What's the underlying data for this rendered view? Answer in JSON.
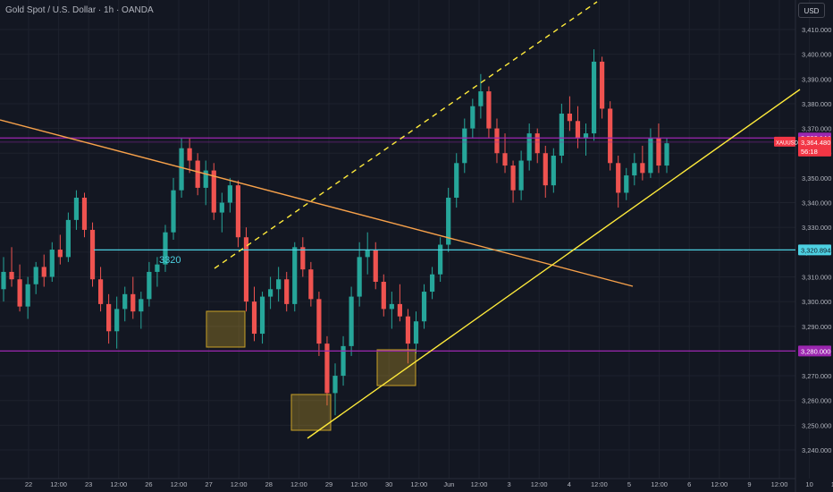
{
  "header": {
    "title": "Gold Spot / U.S. Dollar · 1h · OANDA",
    "currency": "USD"
  },
  "colors": {
    "background": "#131722",
    "grid": "#1e222d",
    "axis_text": "#b2b5be",
    "candle_up": "#26a69a",
    "candle_down": "#ef5350",
    "resistance_line": "#9c27b0",
    "support_3320": "#4dd0e1",
    "trendline_orange": "#f7a14a",
    "trendline_yellow": "#ffeb3b",
    "highlight_box": "#c9a227",
    "price_tag": "#f23645"
  },
  "chart_data": {
    "type": "candlestick",
    "symbol": "XAUUSD",
    "y_axis": {
      "ticks": [
        3410,
        3400,
        3390,
        3380,
        3370,
        3360,
        3350,
        3340,
        3330,
        3320,
        3310,
        3300,
        3290,
        3280,
        3270,
        3260,
        3250,
        3240
      ],
      "tick_labels": [
        "3,410.000",
        "3,400.000",
        "3,390.000",
        "3,380.000",
        "3,370.000",
        "3,360.000",
        "3,350.000",
        "3,340.000",
        "3,330.000",
        "3,320.000",
        "3,310.000",
        "3,300.000",
        "3,290.000",
        "3,280.000",
        "3,270.000",
        "3,260.000",
        "3,250.000",
        "3,240.000"
      ],
      "range": [
        3233,
        3422
      ]
    },
    "x_axis": {
      "tick_labels": [
        "22",
        "12:00",
        "23",
        "12:00",
        "26",
        "12:00",
        "27",
        "12:00",
        "28",
        "12:00",
        "29",
        "12:00",
        "30",
        "12:00",
        "Jun",
        "12:00",
        "3",
        "12:00",
        "4",
        "12:00",
        "5",
        "12:00",
        "6",
        "12:00",
        "9",
        "12:00",
        "10",
        "12:00"
      ]
    },
    "price_levels": [
      {
        "label": "3,366.144",
        "value": 3366.144
      },
      {
        "label": "3,364.480",
        "value": 3364.48
      },
      {
        "label": "3,320.894",
        "value": 3320.894
      },
      {
        "label": "3,280.000",
        "value": 3280.0
      }
    ],
    "price_tag": {
      "symbol": "XAUUSD",
      "price": "3,364.480",
      "countdown": "56:18"
    },
    "annotations": [
      {
        "type": "text",
        "text": "3320",
        "value": 3320
      }
    ],
    "candles": [
      [
        3305,
        3318,
        3300,
        3312
      ],
      [
        3312,
        3322,
        3306,
        3309
      ],
      [
        3309,
        3315,
        3296,
        3298
      ],
      [
        3298,
        3310,
        3293,
        3307
      ],
      [
        3307,
        3316,
        3303,
        3314
      ],
      [
        3314,
        3319,
        3306,
        3310
      ],
      [
        3310,
        3324,
        3308,
        3321
      ],
      [
        3321,
        3327,
        3315,
        3318
      ],
      [
        3318,
        3336,
        3316,
        3333
      ],
      [
        3333,
        3345,
        3329,
        3342
      ],
      [
        3342,
        3344,
        3326,
        3329
      ],
      [
        3329,
        3332,
        3306,
        3309
      ],
      [
        3309,
        3314,
        3296,
        3299
      ],
      [
        3299,
        3303,
        3283,
        3288
      ],
      [
        3288,
        3302,
        3281,
        3297
      ],
      [
        3297,
        3306,
        3292,
        3303
      ],
      [
        3303,
        3310,
        3293,
        3296
      ],
      [
        3296,
        3304,
        3289,
        3301
      ],
      [
        3301,
        3316,
        3298,
        3312
      ],
      [
        3312,
        3318,
        3306,
        3315
      ],
      [
        3315,
        3331,
        3312,
        3328
      ],
      [
        3328,
        3350,
        3325,
        3345
      ],
      [
        3345,
        3366,
        3342,
        3362
      ],
      [
        3362,
        3366,
        3352,
        3357
      ],
      [
        3357,
        3360,
        3343,
        3346
      ],
      [
        3346,
        3357,
        3339,
        3353
      ],
      [
        3353,
        3356,
        3333,
        3336
      ],
      [
        3336,
        3344,
        3328,
        3340
      ],
      [
        3340,
        3350,
        3336,
        3347
      ],
      [
        3347,
        3349,
        3322,
        3326
      ],
      [
        3326,
        3330,
        3296,
        3300
      ],
      [
        3300,
        3306,
        3284,
        3287
      ],
      [
        3287,
        3304,
        3283,
        3302
      ],
      [
        3302,
        3310,
        3297,
        3305
      ],
      [
        3305,
        3314,
        3300,
        3309
      ],
      [
        3309,
        3312,
        3296,
        3299
      ],
      [
        3299,
        3324,
        3296,
        3322
      ],
      [
        3322,
        3326,
        3310,
        3313
      ],
      [
        3313,
        3316,
        3298,
        3301
      ],
      [
        3301,
        3304,
        3278,
        3283
      ],
      [
        3283,
        3286,
        3258,
        3263
      ],
      [
        3263,
        3275,
        3254,
        3270
      ],
      [
        3270,
        3286,
        3266,
        3282
      ],
      [
        3282,
        3306,
        3278,
        3302
      ],
      [
        3302,
        3324,
        3298,
        3318
      ],
      [
        3318,
        3328,
        3311,
        3321
      ],
      [
        3321,
        3324,
        3305,
        3308
      ],
      [
        3308,
        3311,
        3294,
        3297
      ],
      [
        3297,
        3304,
        3289,
        3299
      ],
      [
        3299,
        3307,
        3292,
        3294
      ],
      [
        3294,
        3297,
        3275,
        3283
      ],
      [
        3283,
        3296,
        3279,
        3292
      ],
      [
        3292,
        3307,
        3289,
        3304
      ],
      [
        3304,
        3314,
        3301,
        3311
      ],
      [
        3311,
        3326,
        3308,
        3323
      ],
      [
        3323,
        3346,
        3320,
        3342
      ],
      [
        3342,
        3360,
        3338,
        3356
      ],
      [
        3356,
        3374,
        3352,
        3370
      ],
      [
        3370,
        3382,
        3366,
        3379
      ],
      [
        3379,
        3392,
        3374,
        3385
      ],
      [
        3385,
        3387,
        3366,
        3370
      ],
      [
        3370,
        3374,
        3356,
        3360
      ],
      [
        3360,
        3368,
        3352,
        3355
      ],
      [
        3355,
        3357,
        3340,
        3345
      ],
      [
        3345,
        3361,
        3341,
        3357
      ],
      [
        3357,
        3372,
        3353,
        3368
      ],
      [
        3368,
        3370,
        3356,
        3360
      ],
      [
        3360,
        3363,
        3342,
        3347
      ],
      [
        3347,
        3362,
        3344,
        3359
      ],
      [
        3359,
        3380,
        3356,
        3376
      ],
      [
        3376,
        3383,
        3369,
        3373
      ],
      [
        3373,
        3379,
        3362,
        3366
      ],
      [
        3366,
        3372,
        3359,
        3368
      ],
      [
        3368,
        3402,
        3365,
        3397
      ],
      [
        3397,
        3399,
        3374,
        3378
      ],
      [
        3378,
        3381,
        3353,
        3356
      ],
      [
        3356,
        3359,
        3338,
        3344
      ],
      [
        3344,
        3354,
        3341,
        3351
      ],
      [
        3351,
        3360,
        3347,
        3356
      ],
      [
        3356,
        3363,
        3349,
        3352
      ],
      [
        3352,
        3370,
        3350,
        3366
      ],
      [
        3366,
        3372,
        3352,
        3355
      ],
      [
        3355,
        3366,
        3352,
        3364
      ]
    ]
  }
}
